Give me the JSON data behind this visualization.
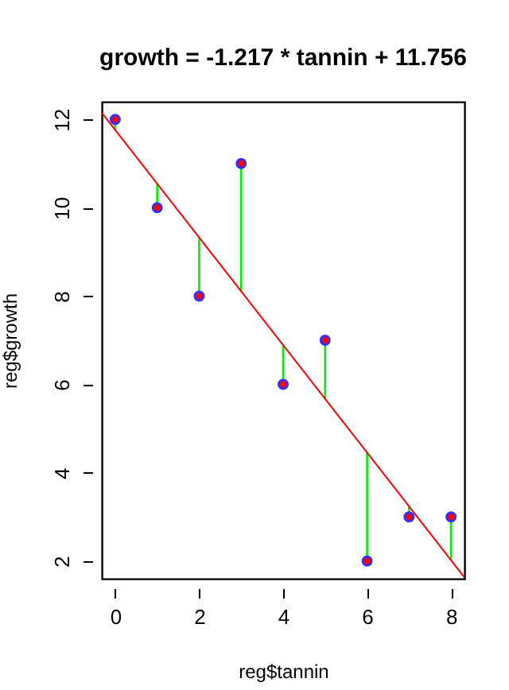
{
  "chart_data": {
    "type": "scatter",
    "title": "growth =  -1.217 * tannin +  11.756",
    "xlabel": "reg$tannin",
    "ylabel": "reg$growth",
    "xlim": [
      -0.32,
      8.32
    ],
    "ylim": [
      1.6,
      12.4
    ],
    "xticks": [
      0,
      2,
      4,
      6,
      8
    ],
    "yticks": [
      2,
      4,
      6,
      8,
      10,
      12
    ],
    "grid": false,
    "series": [
      {
        "color": "#ff0000",
        "marker": "circle",
        "x": [
          0,
          1,
          2,
          3,
          4,
          5,
          6,
          7,
          8
        ],
        "values": [
          12,
          10,
          8,
          11,
          6,
          7,
          2,
          3,
          3
        ],
        "errors": [
          [
            11.76,
            12
          ],
          [
            10,
            10.54
          ],
          [
            8,
            9.32
          ],
          [
            8.1,
            11
          ],
          [
            6,
            6.89
          ],
          [
            5.67,
            7
          ],
          [
            2,
            4.45
          ],
          [
            3,
            3.24
          ],
          [
            2.02,
            3
          ]
        ]
      },
      {
        "type": "line",
        "color": "#ff0000",
        "x": [
          -0.32,
          8.32
        ],
        "values": [
          12.15,
          1.63
        ]
      }
    ]
  }
}
